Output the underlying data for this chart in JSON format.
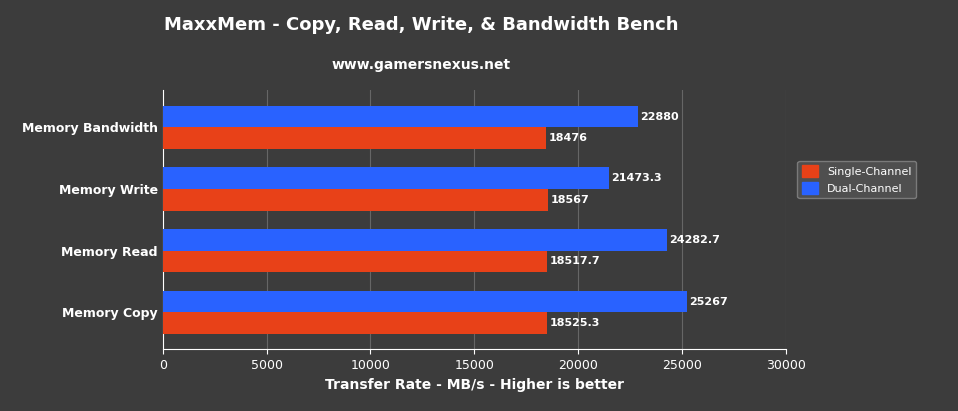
{
  "title": "MaxxMem - Copy, Read, Write, & Bandwidth Bench",
  "subtitle": "www.gamersnexus.net",
  "xlabel": "Transfer Rate - MB/s - Higher is better",
  "categories": [
    "Memory Copy",
    "Memory Read",
    "Memory Write",
    "Memory Bandwidth"
  ],
  "dual_channel": [
    25267,
    24282.7,
    21473.3,
    22880
  ],
  "single_channel": [
    18525.3,
    18517.7,
    18567,
    18476
  ],
  "dual_label_values": [
    "25267",
    "24282.7",
    "21473.3",
    "22880"
  ],
  "single_label_values": [
    "18525.3",
    "18517.7",
    "18567",
    "18476"
  ],
  "dual_color": "#2962FF",
  "single_color": "#E84118",
  "background_color": "#3C3C3C",
  "axes_bg_color": "#3C3C3C",
  "text_color": "#FFFFFF",
  "grid_color": "#666666",
  "xlim": [
    0,
    30000
  ],
  "xticks": [
    0,
    5000,
    10000,
    15000,
    20000,
    25000,
    30000
  ],
  "legend_labels": [
    "Single-Channel",
    "Dual-Channel"
  ],
  "bar_height": 0.35,
  "title_fontsize": 13,
  "subtitle_fontsize": 10,
  "label_fontsize": 8,
  "tick_fontsize": 9,
  "xlabel_fontsize": 10
}
